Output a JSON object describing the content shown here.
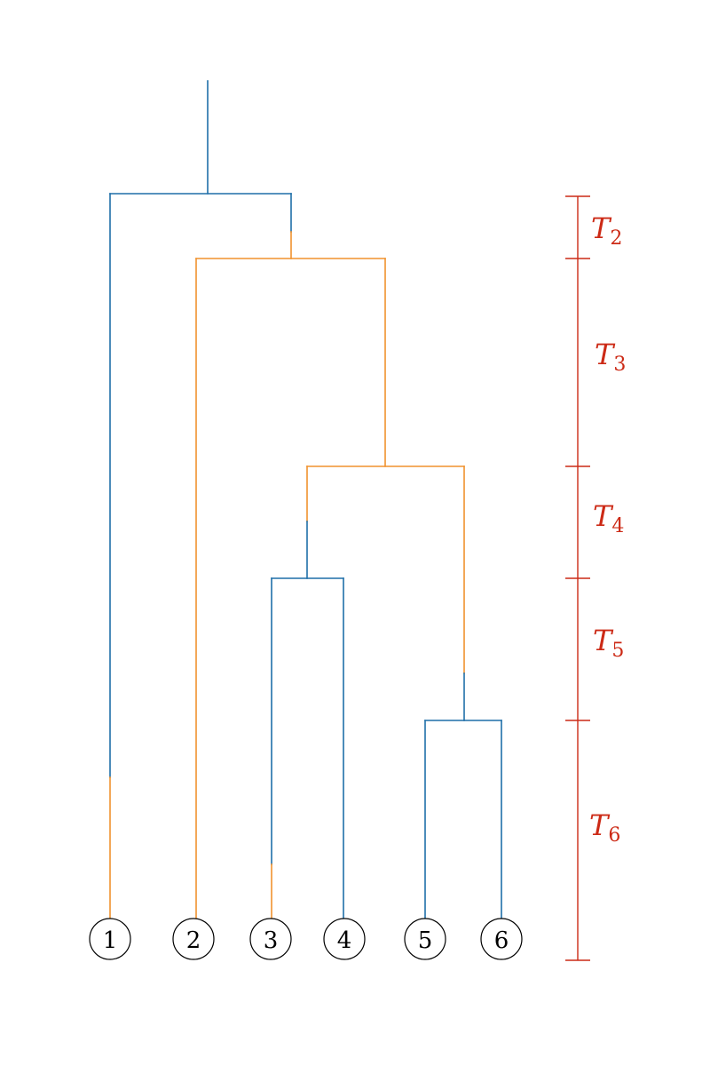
{
  "colors": {
    "blue": "#1f6fa8",
    "orange": "#f0922e",
    "red": "#cc2a16",
    "black": "#000000"
  },
  "leaves": [
    "1",
    "2",
    "3",
    "4",
    "5",
    "6"
  ],
  "time_labels": [
    {
      "base": "T",
      "sub": "2"
    },
    {
      "base": "T",
      "sub": "3"
    },
    {
      "base": "T",
      "sub": "4"
    },
    {
      "base": "T",
      "sub": "5"
    },
    {
      "base": "T",
      "sub": "6"
    }
  ]
}
